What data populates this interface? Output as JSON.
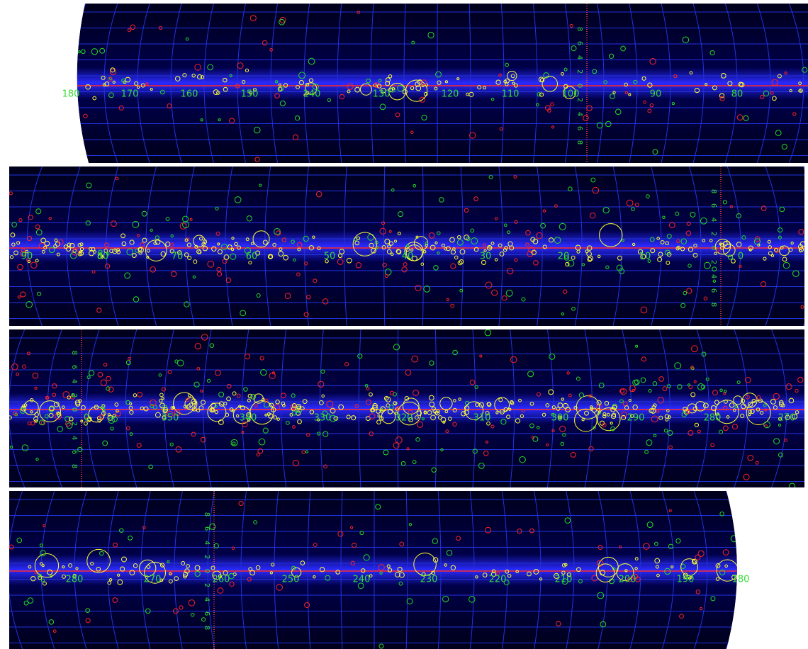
{
  "panels": [
    {
      "longitude_labels": [
        "180",
        "170",
        "160",
        "150",
        "140",
        "130",
        "120",
        "110",
        "100",
        "90",
        "80"
      ],
      "latitude_labels": [
        "8",
        "6",
        "4",
        "2",
        "0",
        "2",
        "4",
        "6",
        "8"
      ]
    },
    {
      "longitude_labels": [
        "90",
        "80",
        "70",
        "60",
        "50",
        "40",
        "30",
        "20",
        "10",
        "0"
      ],
      "latitude_labels": [
        "8",
        "6",
        "4",
        "2",
        "0",
        "2",
        "4",
        "6",
        "8"
      ]
    },
    {
      "longitude_labels": [
        "0",
        "350",
        "340",
        "330",
        "320",
        "310",
        "300",
        "290",
        "280",
        "270"
      ],
      "latitude_labels": [
        "8",
        "6",
        "4",
        "2",
        "0",
        "2",
        "4",
        "6",
        "8"
      ]
    },
    {
      "longitude_labels": [
        "280",
        "270",
        "260",
        "250",
        "240",
        "230",
        "220",
        "210",
        "200",
        "190",
        "180"
      ],
      "latitude_labels": [
        "8",
        "6",
        "4",
        "2",
        "0",
        "2",
        "4",
        "6",
        "8"
      ]
    }
  ]
}
